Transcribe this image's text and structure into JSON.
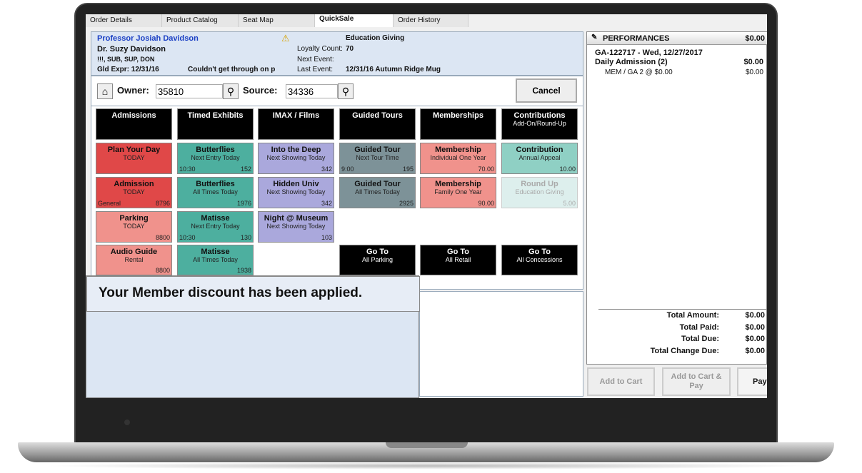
{
  "tabs": [
    "Order Details",
    "Product Catalog",
    "Seat Map",
    "QuickSale",
    "Order History"
  ],
  "active_tab": 3,
  "patron": {
    "name": "Professor Josiah Davidson",
    "secondary": "Dr. Suzy Davidson",
    "codes": "!!!, SUB, SUP, DON",
    "membership": "Gld  Expr: 12/31/16",
    "note": "Couldn't get through on p",
    "warning_icon": "warning-icon",
    "fund": "Education Giving",
    "loyalty_label": "Loyalty Count:",
    "loyalty_value": "70",
    "next_label": "Next Event:",
    "next_value": "",
    "last_label": "Last Event:",
    "last_value": "12/31/16 Autumn Ridge Mug"
  },
  "controls": {
    "owner_label": "Owner:",
    "owner_value": "35810",
    "source_label": "Source:",
    "source_value": "34336",
    "cancel": "Cancel"
  },
  "colors": {
    "red": "#e04848",
    "pink": "#f0928c",
    "teal": "#4daf9f",
    "lavender": "#aaa8dc",
    "slate": "#7d9298",
    "salmon": "#f0928c",
    "mint": "#8fd0c4",
    "mint_disabled": "#ddefed"
  },
  "tiles": [
    [
      {
        "t": "Admissions",
        "s": "",
        "style": "dark"
      },
      {
        "t": "Timed Exhibits",
        "s": "",
        "style": "dark"
      },
      {
        "t": "IMAX / Films",
        "s": "",
        "style": "dark"
      },
      {
        "t": "Guided Tours",
        "s": "",
        "style": "dark"
      },
      {
        "t": "Memberships",
        "s": "",
        "style": "dark"
      },
      {
        "t": "Contributions",
        "s": "Add-On/Round-Up",
        "style": "dark"
      }
    ],
    [
      {
        "t": "Plan Your Day",
        "s": "TODAY",
        "l": "",
        "r": "",
        "style": "red"
      },
      {
        "t": "Butterflies",
        "s": "Next Entry Today",
        "l": "10:30",
        "r": "152",
        "style": "teal"
      },
      {
        "t": "Into the Deep",
        "s": "Next Showing Today",
        "l": "",
        "r": "342",
        "style": "lavender"
      },
      {
        "t": "Guided Tour",
        "s": "Next Tour Time",
        "l": "9:00",
        "r": "195",
        "style": "slate"
      },
      {
        "t": "Membership",
        "s": "Individual One Year",
        "l": "",
        "r": "70.00",
        "style": "salmon"
      },
      {
        "t": "Contribution",
        "s": "Annual Appeal",
        "l": "",
        "r": "10.00",
        "style": "mint"
      }
    ],
    [
      {
        "t": "Admission",
        "s": "TODAY",
        "l": "General",
        "r": "8796",
        "style": "red"
      },
      {
        "t": "Butterflies",
        "s": "All Times Today",
        "l": "",
        "r": "1976",
        "style": "teal"
      },
      {
        "t": "Hidden Univ",
        "s": "Next Showing Today",
        "l": "",
        "r": "342",
        "style": "lavender"
      },
      {
        "t": "Guided Tour",
        "s": "All Times Today",
        "l": "",
        "r": "2925",
        "style": "slate"
      },
      {
        "t": "Membership",
        "s": "Family One Year",
        "l": "",
        "r": "90.00",
        "style": "salmon"
      },
      {
        "t": "Round Up",
        "s": "Education Giving",
        "l": "",
        "r": "5.00",
        "style": "mint_disabled"
      }
    ],
    [
      {
        "t": "Parking",
        "s": "TODAY",
        "l": "",
        "r": "8800",
        "style": "pink"
      },
      {
        "t": "Matisse",
        "s": "Next Entry Today",
        "l": "10:30",
        "r": "130",
        "style": "teal"
      },
      {
        "t": "Night @ Museum",
        "s": "Next Showing Today",
        "l": "",
        "r": "103",
        "style": "lavender"
      },
      null,
      null,
      null
    ],
    [
      {
        "t": "Audio Guide",
        "s": "Rental",
        "l": "",
        "r": "8800",
        "style": "pink"
      },
      {
        "t": "Matisse",
        "s": "All Times Today",
        "l": "",
        "r": "1938",
        "style": "teal"
      },
      null,
      {
        "t": "Go To",
        "s": "All Parking",
        "style": "dark"
      },
      {
        "t": "Go To",
        "s": "All Retail",
        "style": "dark"
      },
      {
        "t": "Go To",
        "s": "All Concessions",
        "style": "dark"
      }
    ]
  ],
  "message": "Your Member discount has been applied.",
  "cart": {
    "header": "PERFORMANCES",
    "header_total": "$0.00",
    "event": "GA-122717 - Wed, 12/27/2017",
    "item": "Daily Admission (2)",
    "item_total": "$0.00",
    "line": "MEM /  GA  2 @ $0.00",
    "line_total": "$0.00",
    "totals": [
      {
        "label": "Total Amount:",
        "value": "$0.00"
      },
      {
        "label": "Total Paid:",
        "value": "$0.00"
      },
      {
        "label": "Total Due:",
        "value": "$0.00"
      },
      {
        "label": "Total Change Due:",
        "value": "$0.00"
      }
    ]
  },
  "buttons": {
    "add_to_cart": "Add to Cart",
    "add_pay": "Add to Cart & Pay",
    "pay": "Pay"
  }
}
